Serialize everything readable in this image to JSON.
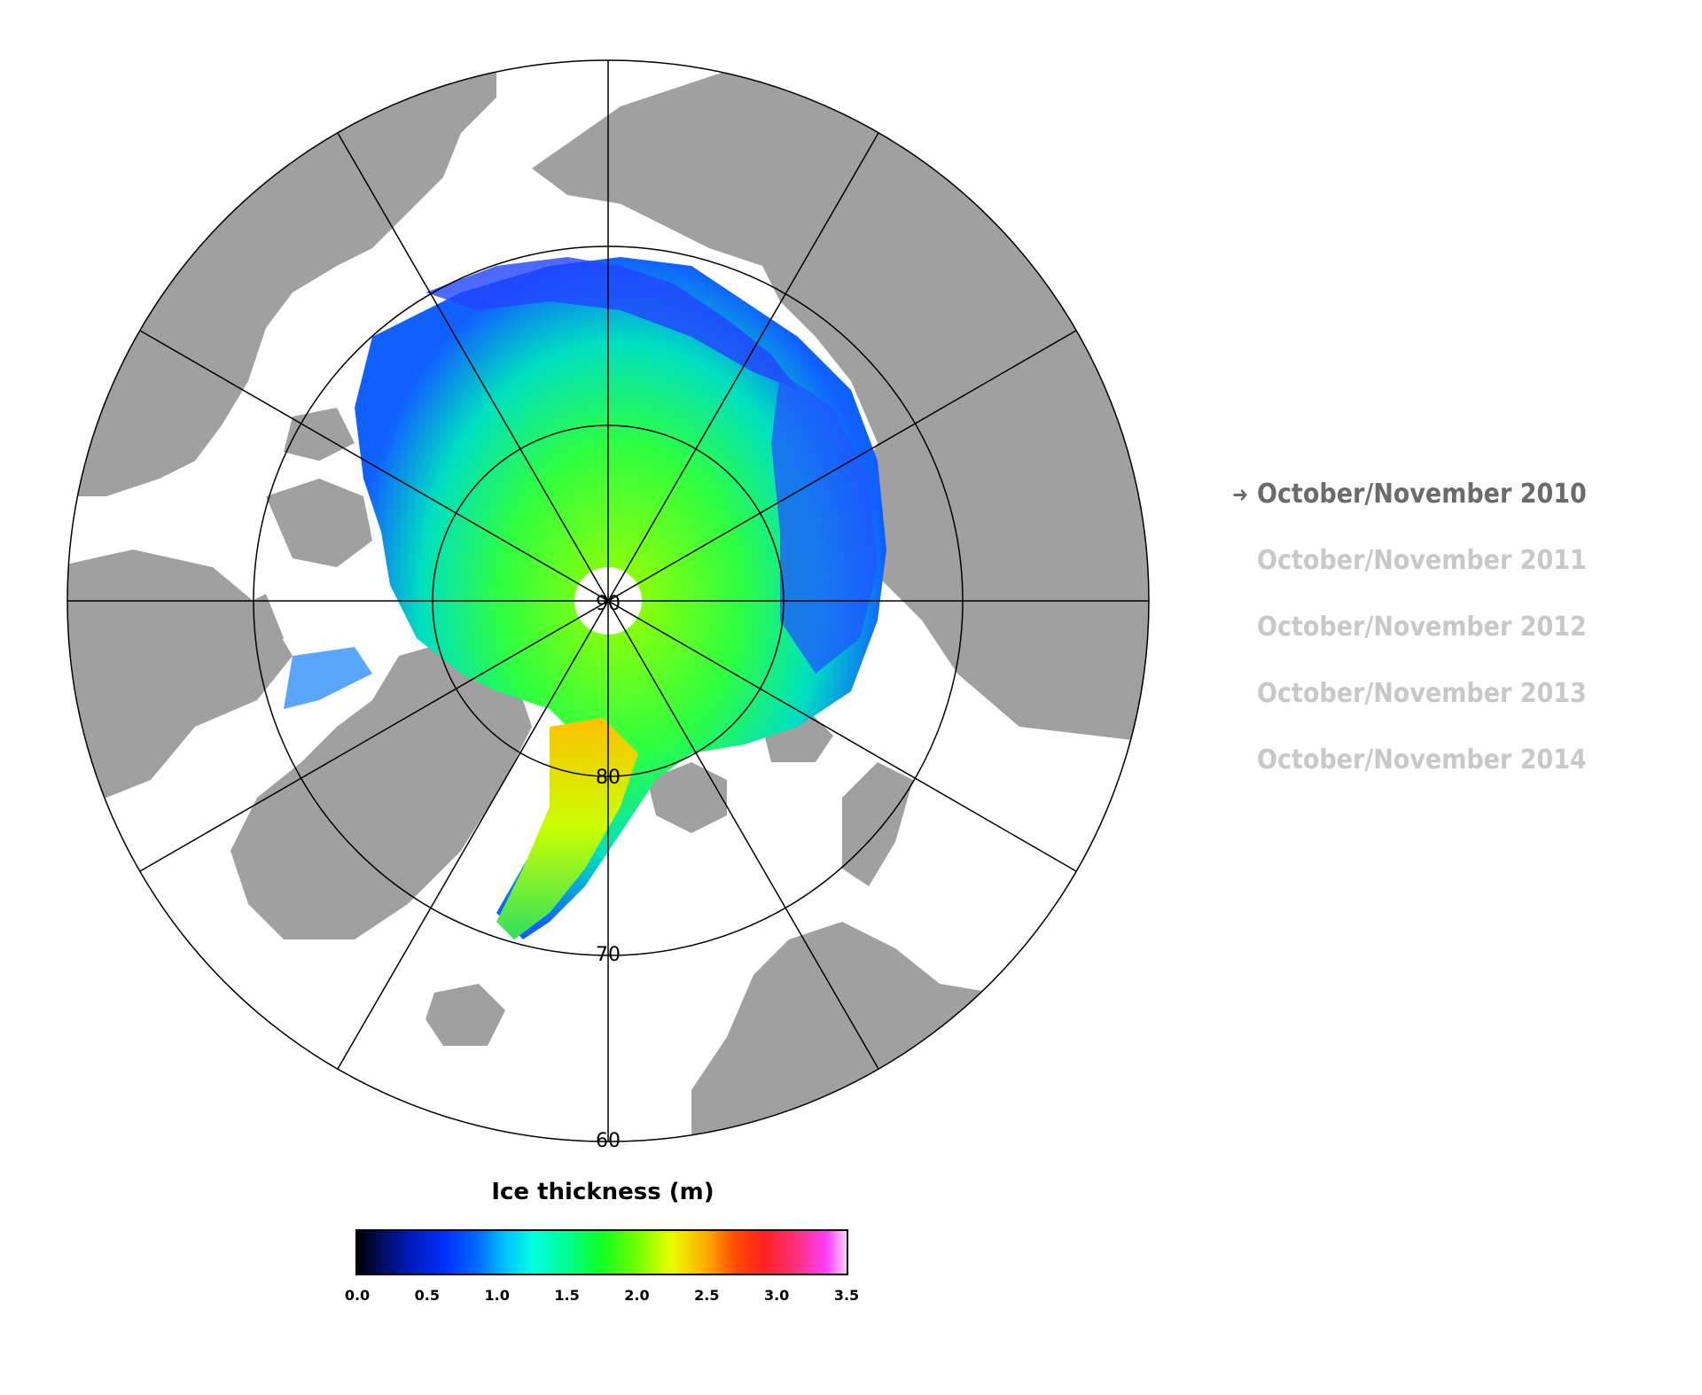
{
  "map": {
    "latitude_labels": [
      "80",
      "70",
      "60"
    ],
    "pole_label": "90",
    "colors": {
      "land": "#a0a0a0",
      "ocean": "#ffffff",
      "grid": "#000000"
    }
  },
  "legend": {
    "title": "Ice thickness (m)",
    "ticks": [
      "0.0",
      "0.5",
      "1.0",
      "1.5",
      "2.0",
      "2.5",
      "3.0",
      "3.5"
    ],
    "range": [
      0,
      3.5
    ]
  },
  "periods": [
    {
      "label": "October/November 2010",
      "active": true
    },
    {
      "label": "October/November 2011",
      "active": false
    },
    {
      "label": "October/November 2012",
      "active": false
    },
    {
      "label": "October/November 2013",
      "active": false
    },
    {
      "label": "October/November 2014",
      "active": false
    }
  ],
  "icons": {
    "selected_indicator": "arrow-right-icon"
  }
}
